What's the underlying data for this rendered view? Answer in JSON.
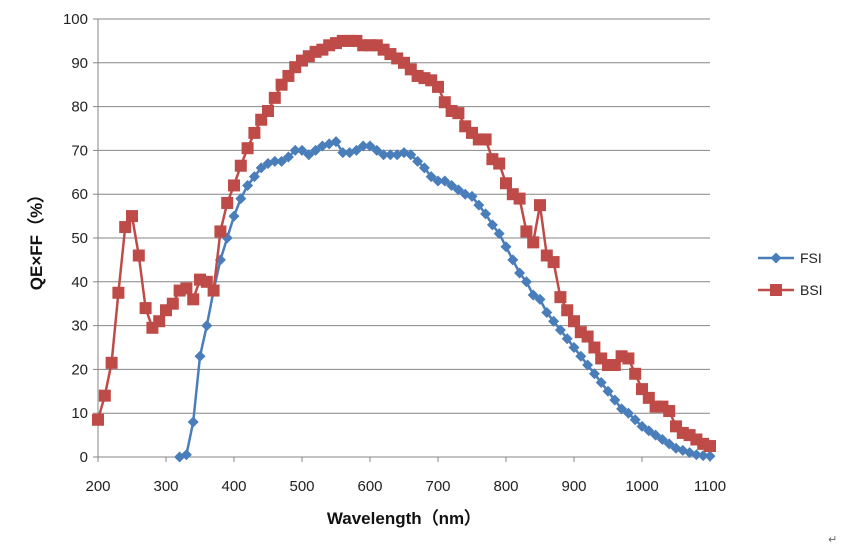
{
  "chart_data": {
    "type": "line",
    "title": "",
    "xlabel": "Wavelength（nm）",
    "ylabel": "QE×FF（%）",
    "xlim": [
      200,
      1100
    ],
    "ylim": [
      0,
      100
    ],
    "xticks": [
      200,
      300,
      400,
      500,
      600,
      700,
      800,
      900,
      1000,
      1100
    ],
    "yticks": [
      0,
      10,
      20,
      30,
      40,
      50,
      60,
      70,
      80,
      90,
      100
    ],
    "grid": "horizontal",
    "legend_position": "right",
    "series": [
      {
        "name": "FSI",
        "color": "#4a7ebb",
        "marker": "diamond",
        "points": [
          [
            320,
            0
          ],
          [
            330,
            0.5
          ],
          [
            340,
            8
          ],
          [
            350,
            23
          ],
          [
            360,
            30
          ],
          [
            370,
            38
          ],
          [
            380,
            45
          ],
          [
            390,
            50
          ],
          [
            400,
            55
          ],
          [
            410,
            59
          ],
          [
            420,
            62
          ],
          [
            430,
            64
          ],
          [
            440,
            66
          ],
          [
            450,
            67
          ],
          [
            460,
            67.5
          ],
          [
            470,
            67.5
          ],
          [
            480,
            68.5
          ],
          [
            490,
            70
          ],
          [
            500,
            70
          ],
          [
            510,
            69
          ],
          [
            520,
            70
          ],
          [
            530,
            71
          ],
          [
            540,
            71.5
          ],
          [
            550,
            72
          ],
          [
            560,
            69.5
          ],
          [
            570,
            69.5
          ],
          [
            580,
            70
          ],
          [
            590,
            71
          ],
          [
            600,
            71
          ],
          [
            610,
            70
          ],
          [
            620,
            69
          ],
          [
            630,
            69
          ],
          [
            640,
            69
          ],
          [
            650,
            69.5
          ],
          [
            660,
            69
          ],
          [
            670,
            67.5
          ],
          [
            680,
            66
          ],
          [
            690,
            64
          ],
          [
            700,
            63
          ],
          [
            710,
            63
          ],
          [
            720,
            62
          ],
          [
            730,
            61
          ],
          [
            740,
            60
          ],
          [
            750,
            59.5
          ],
          [
            760,
            57.5
          ],
          [
            770,
            55.5
          ],
          [
            780,
            53
          ],
          [
            790,
            51
          ],
          [
            800,
            48
          ],
          [
            810,
            45
          ],
          [
            820,
            42
          ],
          [
            830,
            40
          ],
          [
            840,
            37
          ],
          [
            850,
            36
          ],
          [
            860,
            33
          ],
          [
            870,
            31
          ],
          [
            880,
            29
          ],
          [
            890,
            27
          ],
          [
            900,
            25
          ],
          [
            910,
            23
          ],
          [
            920,
            21
          ],
          [
            930,
            19
          ],
          [
            940,
            17
          ],
          [
            950,
            15
          ],
          [
            960,
            13
          ],
          [
            970,
            11
          ],
          [
            980,
            10
          ],
          [
            990,
            8.5
          ],
          [
            1000,
            7
          ],
          [
            1010,
            6
          ],
          [
            1020,
            5
          ],
          [
            1030,
            4
          ],
          [
            1040,
            3
          ],
          [
            1050,
            2
          ],
          [
            1060,
            1.5
          ],
          [
            1070,
            1
          ],
          [
            1080,
            0.5
          ],
          [
            1090,
            0.3
          ],
          [
            1100,
            0.2
          ]
        ]
      },
      {
        "name": "BSI",
        "color": "#be4b48",
        "marker": "square",
        "points": [
          [
            200,
            8.5
          ],
          [
            210,
            14
          ],
          [
            220,
            21.5
          ],
          [
            230,
            37.5
          ],
          [
            240,
            52.5
          ],
          [
            250,
            55
          ],
          [
            260,
            46
          ],
          [
            270,
            34
          ],
          [
            280,
            29.5
          ],
          [
            290,
            31
          ],
          [
            300,
            33.5
          ],
          [
            310,
            35
          ],
          [
            320,
            38
          ],
          [
            330,
            38.5
          ],
          [
            340,
            36
          ],
          [
            350,
            40.5
          ],
          [
            360,
            40
          ],
          [
            370,
            38
          ],
          [
            380,
            51.5
          ],
          [
            390,
            58
          ],
          [
            400,
            62
          ],
          [
            410,
            66.5
          ],
          [
            420,
            70.5
          ],
          [
            430,
            74
          ],
          [
            440,
            77
          ],
          [
            450,
            79
          ],
          [
            460,
            82
          ],
          [
            470,
            85
          ],
          [
            480,
            87
          ],
          [
            490,
            89
          ],
          [
            500,
            90.5
          ],
          [
            510,
            91.5
          ],
          [
            520,
            92.5
          ],
          [
            530,
            93
          ],
          [
            540,
            94
          ],
          [
            550,
            94.5
          ],
          [
            560,
            95
          ],
          [
            570,
            95
          ],
          [
            580,
            95
          ],
          [
            590,
            94
          ],
          [
            600,
            94
          ],
          [
            610,
            94
          ],
          [
            620,
            93
          ],
          [
            630,
            92
          ],
          [
            640,
            91
          ],
          [
            650,
            90
          ],
          [
            660,
            88.5
          ],
          [
            670,
            87
          ],
          [
            680,
            86.5
          ],
          [
            690,
            86
          ],
          [
            700,
            84.5
          ],
          [
            710,
            81
          ],
          [
            720,
            79
          ],
          [
            730,
            78.5
          ],
          [
            740,
            75.5
          ],
          [
            750,
            74
          ],
          [
            760,
            72.5
          ],
          [
            770,
            72.5
          ],
          [
            780,
            68
          ],
          [
            790,
            67
          ],
          [
            800,
            62.5
          ],
          [
            810,
            60
          ],
          [
            820,
            59
          ],
          [
            830,
            51.5
          ],
          [
            840,
            49
          ],
          [
            850,
            57.5
          ],
          [
            860,
            46
          ],
          [
            870,
            44.5
          ],
          [
            880,
            36.5
          ],
          [
            890,
            33.5
          ],
          [
            900,
            31
          ],
          [
            910,
            28.5
          ],
          [
            920,
            27.5
          ],
          [
            930,
            25
          ],
          [
            940,
            22.5
          ],
          [
            950,
            21
          ],
          [
            960,
            21
          ],
          [
            970,
            23
          ],
          [
            980,
            22.5
          ],
          [
            990,
            19
          ],
          [
            1000,
            15.5
          ],
          [
            1010,
            13.5
          ],
          [
            1020,
            11.5
          ],
          [
            1030,
            11.5
          ],
          [
            1040,
            10.5
          ],
          [
            1050,
            7
          ],
          [
            1060,
            5.5
          ],
          [
            1070,
            5
          ],
          [
            1080,
            4
          ],
          [
            1090,
            3
          ],
          [
            1100,
            2.5
          ]
        ]
      }
    ]
  },
  "corner_mark": "↵"
}
